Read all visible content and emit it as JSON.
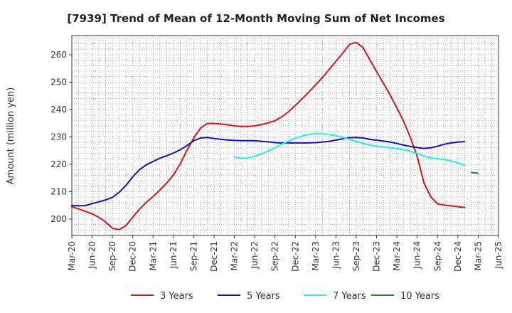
{
  "chart_data": {
    "type": "line",
    "title": "[7939]  Trend of Mean of 12-Month Moving Sum of Net Incomes",
    "xlabel": "",
    "ylabel": "Amount (million yen)",
    "ylim": [
      194,
      267
    ],
    "yticks": [
      200,
      210,
      220,
      230,
      240,
      250,
      260
    ],
    "x_ticks": [
      "Mar-20",
      "Jun-20",
      "Sep-20",
      "Dec-20",
      "Mar-21",
      "Jun-21",
      "Sep-21",
      "Dec-21",
      "Mar-22",
      "Jun-22",
      "Sep-22",
      "Dec-22",
      "Mar-23",
      "Jun-23",
      "Sep-23",
      "Dec-23",
      "Mar-24",
      "Jun-24",
      "Sep-24",
      "Dec-24",
      "Mar-25",
      "Jun-25"
    ],
    "grid": true,
    "legend_position": "bottom",
    "series": [
      {
        "name": "3 Years",
        "color": "#dd1111",
        "start": "Mar-20",
        "values": [
          204.5,
          203.7,
          202.8,
          201.9,
          200.6,
          198.9,
          196.6,
          196.1,
          197.6,
          200.7,
          203.6,
          206.1,
          208.2,
          210.6,
          213.1,
          216.1,
          220.1,
          225.1,
          229.6,
          233.2,
          234.9,
          234.9,
          234.7,
          234.4,
          234.0,
          233.8,
          233.8,
          234.0,
          234.5,
          235.1,
          235.9,
          237.3,
          239.2,
          241.5,
          243.9,
          246.4,
          249.0,
          251.7,
          254.6,
          257.6,
          260.6,
          263.8,
          264.5,
          262.6,
          258.2,
          253.8,
          249.6,
          245.3,
          240.6,
          235.6,
          229.7,
          222.8,
          213.2,
          208.1,
          205.5,
          205.1,
          204.8,
          204.5,
          204.2
        ]
      },
      {
        "name": "5 Years",
        "color": "#1111bb",
        "start": "Mar-20",
        "values": [
          205.0,
          204.8,
          204.9,
          205.6,
          206.3,
          207.0,
          207.9,
          209.8,
          212.3,
          215.4,
          218.0,
          219.8,
          221.0,
          222.2,
          223.1,
          224.1,
          225.3,
          226.8,
          228.6,
          229.6,
          229.8,
          229.4,
          229.1,
          228.9,
          228.7,
          228.6,
          228.6,
          228.6,
          228.4,
          228.2,
          227.9,
          227.8,
          227.8,
          227.8,
          227.8,
          227.8,
          227.9,
          228.1,
          228.4,
          228.8,
          229.3,
          229.7,
          229.8,
          229.6,
          229.1,
          228.8,
          228.5,
          228.1,
          227.6,
          227.0,
          226.5,
          226.1,
          225.8,
          226.0,
          226.6,
          227.3,
          227.8,
          228.1,
          228.3
        ]
      },
      {
        "name": "7 Years",
        "color": "#22eeee",
        "start": "Mar-22",
        "values": [
          222.6,
          222.2,
          222.3,
          222.9,
          223.8,
          224.8,
          226.0,
          227.3,
          228.5,
          229.5,
          230.3,
          230.9,
          231.2,
          231.1,
          230.8,
          230.4,
          229.8,
          229.1,
          228.3,
          227.6,
          227.0,
          226.6,
          226.3,
          226.0,
          225.7,
          225.3,
          224.7,
          223.9,
          223.0,
          222.3,
          222.0,
          221.7,
          221.2,
          220.5,
          219.6
        ]
      },
      {
        "name": "10 Years",
        "color": "#228822",
        "start": "Feb-25",
        "values": [
          217.0,
          216.7
        ]
      }
    ]
  }
}
